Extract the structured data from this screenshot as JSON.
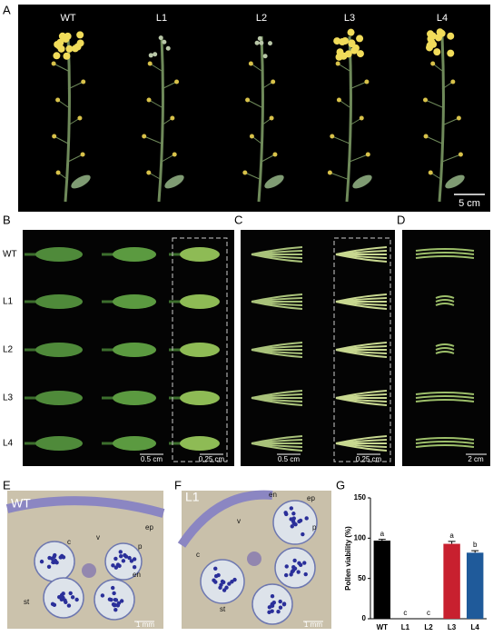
{
  "panels": {
    "a": {
      "label": "A",
      "lines": [
        "WT",
        "L1",
        "L2",
        "L3",
        "L4"
      ],
      "scale_bar": "5 cm"
    },
    "b": {
      "label": "B",
      "rows": [
        "WT",
        "L1",
        "L2",
        "L3",
        "L4"
      ],
      "scale_bars": [
        "0.5 cm",
        "0.25 cm"
      ]
    },
    "c": {
      "label": "C",
      "scale_bars": [
        "0.5 cm",
        "0.25 cm"
      ]
    },
    "d": {
      "label": "D",
      "scale_bar": "2 cm"
    },
    "e": {
      "label": "E",
      "line": "WT",
      "tissues": [
        "c",
        "v",
        "ep",
        "p",
        "en",
        "st"
      ],
      "scale_bar": "1 mm"
    },
    "f": {
      "label": "F",
      "line": "L1",
      "tissues": [
        "en",
        "ep",
        "v",
        "p",
        "c",
        "st"
      ],
      "scale_bar": "1 mm"
    }
  },
  "chart_data": {
    "type": "bar",
    "panel_label": "G",
    "ylabel": "Pollen viability (%)",
    "categories": [
      "WT",
      "L1",
      "L2",
      "L3",
      "L4"
    ],
    "values": [
      97,
      0,
      0,
      93,
      82
    ],
    "errors": [
      1.5,
      0,
      0,
      3,
      2.5
    ],
    "colors": [
      "#000000",
      "#000000",
      "#000000",
      "#c8202f",
      "#1f5a9a"
    ],
    "significance": [
      "a",
      "c",
      "c",
      "a",
      "b"
    ],
    "ylim": [
      0,
      150
    ],
    "yticks": [
      0,
      50,
      100,
      150
    ]
  }
}
